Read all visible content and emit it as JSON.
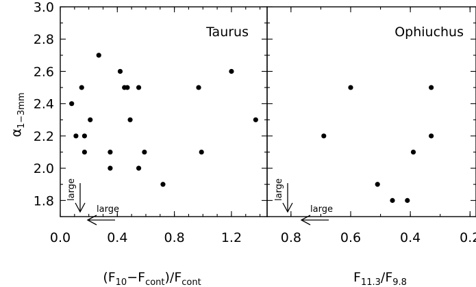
{
  "chart_data": [
    {
      "type": "scatter",
      "panel_title": "Taurus",
      "xlabel": {
        "pre": "(F",
        "s1": "10",
        "mid1": "−F",
        "s2": "cont",
        "mid2": ")/F",
        "s3": "cont"
      },
      "ylabel": {
        "greek": "α",
        "sub": "1−3mm"
      },
      "xlim": [
        0.0,
        1.45
      ],
      "ylim": [
        1.7,
        3.0
      ],
      "x_ticks": [
        "0.0",
        "0.4",
        "0.8",
        "1.2"
      ],
      "y_ticks": [
        "1.8",
        "2.0",
        "2.2",
        "2.4",
        "2.6",
        "2.8",
        "3.0"
      ],
      "annotations": [
        "large",
        "large"
      ],
      "points": [
        {
          "x": 0.27,
          "y": 2.7
        },
        {
          "x": 0.15,
          "y": 2.5
        },
        {
          "x": 0.42,
          "y": 2.6
        },
        {
          "x": 0.45,
          "y": 2.5
        },
        {
          "x": 0.47,
          "y": 2.5
        },
        {
          "x": 0.55,
          "y": 2.5
        },
        {
          "x": 0.97,
          "y": 2.5
        },
        {
          "x": 1.2,
          "y": 2.6
        },
        {
          "x": 0.08,
          "y": 2.4
        },
        {
          "x": 0.21,
          "y": 2.3
        },
        {
          "x": 0.49,
          "y": 2.3
        },
        {
          "x": 1.37,
          "y": 2.3
        },
        {
          "x": 0.11,
          "y": 2.2
        },
        {
          "x": 0.17,
          "y": 2.2
        },
        {
          "x": 0.17,
          "y": 2.1
        },
        {
          "x": 0.35,
          "y": 2.1
        },
        {
          "x": 0.59,
          "y": 2.1
        },
        {
          "x": 0.99,
          "y": 2.1
        },
        {
          "x": 0.35,
          "y": 2.0
        },
        {
          "x": 0.55,
          "y": 2.0
        },
        {
          "x": 0.72,
          "y": 1.9
        }
      ]
    },
    {
      "type": "scatter",
      "panel_title": "Ophiuchus",
      "xlabel": {
        "pre": "F",
        "s1": "11.3",
        "mid1": "/F",
        "s2": "9.8"
      },
      "xlim": [
        0.88,
        0.18
      ],
      "ylim": [
        1.7,
        3.0
      ],
      "x_ticks": [
        "0.8",
        "0.6",
        "0.4",
        "0.2"
      ],
      "annotations": [
        "large",
        "large"
      ],
      "points": [
        {
          "x": 0.6,
          "y": 2.5
        },
        {
          "x": 0.33,
          "y": 2.5
        },
        {
          "x": 0.69,
          "y": 2.2
        },
        {
          "x": 0.33,
          "y": 2.2
        },
        {
          "x": 0.39,
          "y": 2.1
        },
        {
          "x": 0.51,
          "y": 1.9
        },
        {
          "x": 0.46,
          "y": 1.8
        },
        {
          "x": 0.41,
          "y": 1.8
        }
      ]
    }
  ]
}
